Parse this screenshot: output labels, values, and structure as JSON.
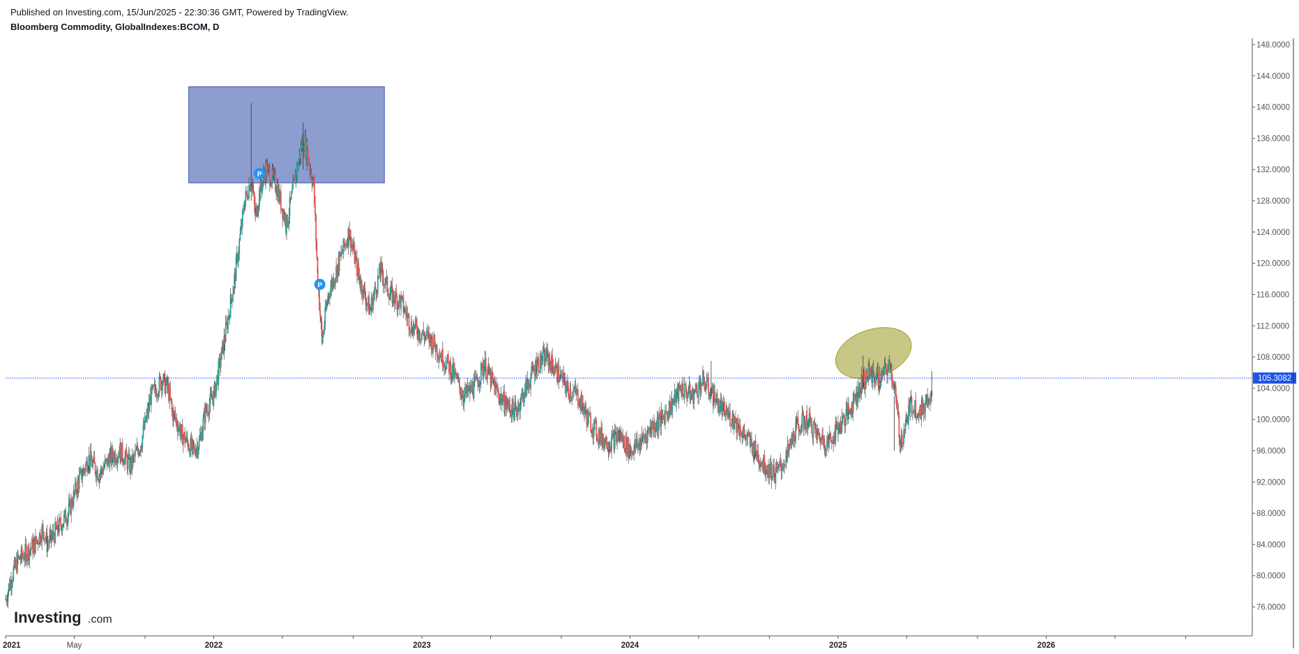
{
  "header": {
    "published": "Published on Investing.com, 15/Jun/2025 - 22:30:36 GMT, Powered by TradingView.",
    "symbol": "Bloomberg Commodity, GlobalIndexes:BCOM, D"
  },
  "logo": {
    "main": "Investing",
    "suffix": ".com"
  },
  "colors": {
    "up": "#26a69a",
    "down": "#ef5350",
    "wick": "#333333",
    "price_line": "#1e53e5",
    "rect_fill": "#8c9dcf",
    "rect_stroke": "#3f51b5",
    "ellipse_fill": "#c8c886",
    "ellipse_stroke": "#9e9e2e",
    "marker": "#2196f3"
  },
  "markers": [
    {
      "label": "P",
      "date": 2022.22,
      "price": 131.5
    },
    {
      "label": "P",
      "date": 2022.51,
      "price": 117.3
    }
  ],
  "chart_data": {
    "type": "line",
    "title": "Bloomberg Commodity, GlobalIndexes:BCOM, D",
    "xlim": [
      2021.0,
      2026.98
    ],
    "ylim": [
      72.3,
      148.8
    ],
    "y_ticks": [
      "148.0000",
      "144.0000",
      "140.0000",
      "136.0000",
      "132.0000",
      "128.0000",
      "124.0000",
      "120.0000",
      "116.0000",
      "112.0000",
      "108.0000",
      "104.0000",
      "100.0000",
      "96.0000",
      "92.0000",
      "88.0000",
      "84.0000",
      "80.0000",
      "76.0000"
    ],
    "x_ticks": [
      {
        "label": "2021",
        "pos": 2021.0,
        "bold": true
      },
      {
        "label": "May",
        "pos": 2021.33,
        "bold": false
      },
      {
        "label": "",
        "pos": 2021.67,
        "bold": false
      },
      {
        "label": "2022",
        "pos": 2022.0,
        "bold": true
      },
      {
        "label": "",
        "pos": 2022.33,
        "bold": false
      },
      {
        "label": "",
        "pos": 2022.67,
        "bold": false
      },
      {
        "label": "2023",
        "pos": 2023.0,
        "bold": true
      },
      {
        "label": "",
        "pos": 2023.33,
        "bold": false
      },
      {
        "label": "",
        "pos": 2023.67,
        "bold": false
      },
      {
        "label": "2024",
        "pos": 2024.0,
        "bold": true
      },
      {
        "label": "",
        "pos": 2024.33,
        "bold": false
      },
      {
        "label": "",
        "pos": 2024.67,
        "bold": false
      },
      {
        "label": "2025",
        "pos": 2025.0,
        "bold": true
      },
      {
        "label": "",
        "pos": 2025.33,
        "bold": false
      },
      {
        "label": "",
        "pos": 2025.67,
        "bold": false
      },
      {
        "label": "2026",
        "pos": 2026.0,
        "bold": true
      },
      {
        "label": "",
        "pos": 2026.33,
        "bold": false
      },
      {
        "label": "",
        "pos": 2026.67,
        "bold": false
      }
    ],
    "last_price": 105.3082,
    "last_price_label": "105.3082",
    "series": [
      {
        "x": [
          2021.0,
          2021.03,
          2021.06,
          2021.1,
          2021.14,
          2021.18,
          2021.2,
          2021.25,
          2021.3,
          2021.35,
          2021.4,
          2021.45,
          2021.5,
          2021.55,
          2021.6,
          2021.65,
          2021.7,
          2021.75,
          2021.78,
          2021.8,
          2021.85,
          2021.9,
          2021.93,
          2021.96,
          2022.0,
          2022.05,
          2022.1,
          2022.15,
          2022.18,
          2022.2,
          2022.22,
          2022.25,
          2022.3,
          2022.35,
          2022.4,
          2022.43,
          2022.45,
          2022.48,
          2022.5,
          2022.52,
          2022.55,
          2022.6,
          2022.65,
          2022.7,
          2022.75,
          2022.8,
          2022.85,
          2022.9,
          2022.95,
          2023.0,
          2023.05,
          2023.1,
          2023.15,
          2023.2,
          2023.25,
          2023.3,
          2023.35,
          2023.4,
          2023.45,
          2023.5,
          2023.55,
          2023.6,
          2023.65,
          2023.7,
          2023.75,
          2023.8,
          2023.85,
          2023.9,
          2023.95,
          2024.0,
          2024.05,
          2024.1,
          2024.15,
          2024.2,
          2024.25,
          2024.3,
          2024.35,
          2024.4,
          2024.45,
          2024.5,
          2024.55,
          2024.6,
          2024.65,
          2024.7,
          2024.75,
          2024.8,
          2024.85,
          2024.9,
          2024.95,
          2025.0,
          2025.05,
          2025.1,
          2025.15,
          2025.2,
          2025.25,
          2025.27,
          2025.3,
          2025.35,
          2025.4,
          2025.45
        ],
        "values": [
          77,
          80,
          82,
          83,
          84,
          86,
          84,
          86,
          88,
          92,
          95,
          93,
          95,
          96,
          94,
          97,
          103,
          105,
          104,
          101,
          98,
          96,
          97,
          101,
          103,
          110,
          118,
          128,
          131,
          126,
          129,
          132,
          130,
          125,
          132,
          136,
          134,
          130,
          118,
          110,
          116,
          120,
          124,
          118,
          114,
          119,
          116,
          115,
          112,
          111,
          110,
          108,
          106,
          103,
          104,
          107,
          104,
          102,
          101,
          104,
          107,
          108,
          106,
          104,
          103,
          100,
          98,
          97,
          98,
          96,
          97,
          99,
          100,
          102,
          104,
          103,
          105,
          103,
          101,
          100,
          98,
          96,
          94,
          93,
          95,
          99,
          100,
          98,
          97,
          99,
          101,
          104,
          106,
          105,
          107,
          104,
          97,
          102,
          101,
          104
        ]
      }
    ]
  }
}
